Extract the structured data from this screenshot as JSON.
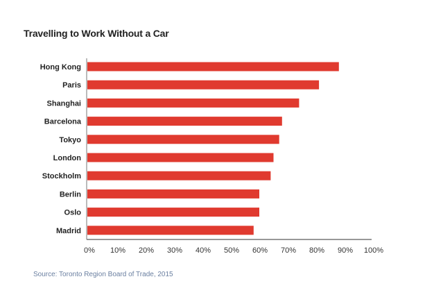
{
  "chart_data": {
    "type": "bar",
    "orientation": "horizontal",
    "title": "Travelling to Work Without a Car",
    "categories": [
      "Hong Kong",
      "Paris",
      "Shanghai",
      "Barcelona",
      "Tokyo",
      "London",
      "Stockholm",
      "Berlin",
      "Oslo",
      "Madrid"
    ],
    "values": [
      88,
      81,
      74,
      68,
      67,
      65,
      64,
      60,
      60,
      58
    ],
    "xlabel": "",
    "ylabel": "",
    "xlim": [
      0,
      100
    ],
    "x_ticks": [
      "0%",
      "10%",
      "20%",
      "30%",
      "40%",
      "50%",
      "60%",
      "70%",
      "80%",
      "90%",
      "100%"
    ],
    "grid": false,
    "bar_color": "#e03a2f",
    "source": "Source: Toronto Region Board of Trade, 2015"
  }
}
